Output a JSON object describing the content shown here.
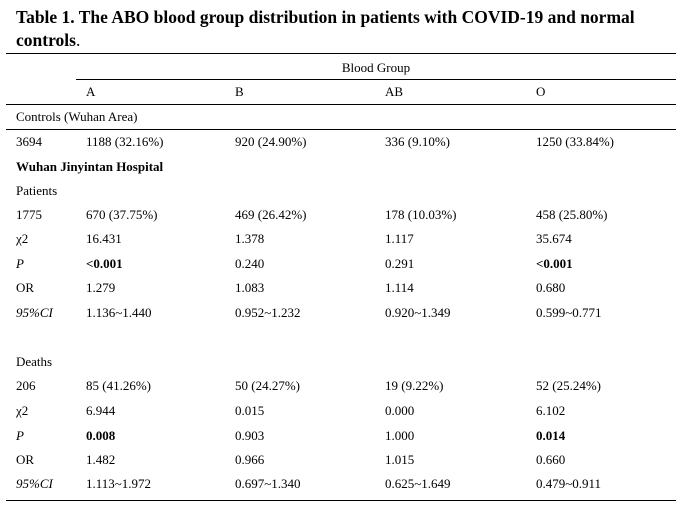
{
  "title": {
    "text": "Table 1. The ABO blood group distribution in patients with COVID-19 and normal controls",
    "period": "."
  },
  "header": {
    "group_label": "Blood Group",
    "columns": [
      "A",
      "B",
      "AB",
      "O"
    ]
  },
  "controls": {
    "label": "Controls (Wuhan Area)",
    "row": {
      "n": "3694",
      "values": [
        "1188 (32.16%)",
        "920 (24.90%)",
        "336 (9.10%)",
        "1250 (33.84%)"
      ]
    }
  },
  "hospital": {
    "label": "Wuhan Jinyintan Hospital"
  },
  "patients": {
    "label": "Patients",
    "count_row": {
      "n": "1775",
      "values": [
        "670 (37.75%)",
        "469 (26.42%)",
        "178 (10.03%)",
        "458 (25.80%)"
      ]
    },
    "chi2_row": {
      "label": "χ2",
      "values": [
        "16.431",
        "1.378",
        "1.117",
        "35.674"
      ]
    },
    "p_row": {
      "label": "P",
      "values": [
        "<0.001",
        "0.240",
        "0.291",
        "<0.001"
      ],
      "bold": [
        true,
        false,
        false,
        true
      ]
    },
    "or_row": {
      "label": "OR",
      "values": [
        "1.279",
        "1.083",
        "1.114",
        "0.680"
      ]
    },
    "ci_row": {
      "label": "95%CI",
      "values": [
        "1.136~1.440",
        "0.952~1.232",
        "0.920~1.349",
        "0.599~0.771"
      ]
    }
  },
  "deaths": {
    "label": "Deaths",
    "count_row": {
      "n": "206",
      "values": [
        "85 (41.26%)",
        "50 (24.27%)",
        "19 (9.22%)",
        "52 (25.24%)"
      ]
    },
    "chi2_row": {
      "label": "χ2",
      "values": [
        "6.944",
        "0.015",
        "0.000",
        "6.102"
      ]
    },
    "p_row": {
      "label": "P",
      "values": [
        "0.008",
        "0.903",
        "1.000",
        "0.014"
      ],
      "bold": [
        true,
        false,
        false,
        true
      ]
    },
    "or_row": {
      "label": "OR",
      "values": [
        "1.482",
        "0.966",
        "1.015",
        "0.660"
      ]
    },
    "ci_row": {
      "label": "95%CI",
      "values": [
        "1.113~1.972",
        "0.697~1.340",
        "0.625~1.649",
        "0.479~0.911"
      ]
    }
  }
}
